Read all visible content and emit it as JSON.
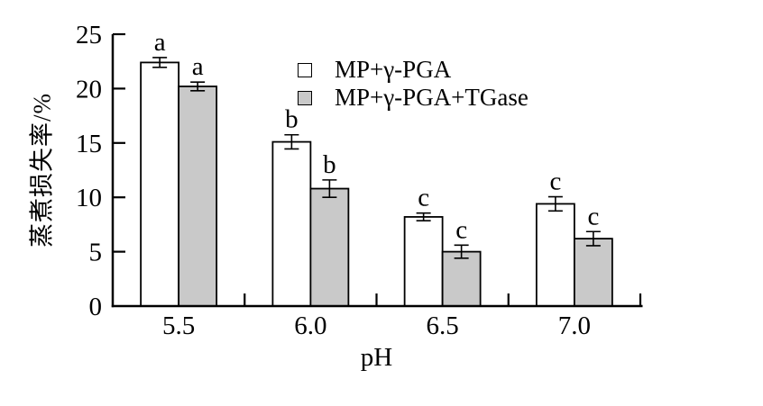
{
  "figure": {
    "background": "#ffffff",
    "text_color": "#000000"
  },
  "chart_data": {
    "type": "bar",
    "xlabel": "pH",
    "ylabel": "蒸煮损失率/%",
    "categories": [
      "5.5",
      "6.0",
      "6.5",
      "7.0"
    ],
    "series": [
      {
        "name": "MP+γ-PGA",
        "fill": "#ffffff",
        "values": [
          22.4,
          15.1,
          8.2,
          9.4
        ],
        "errors": [
          0.45,
          0.65,
          0.35,
          0.65
        ],
        "letters": [
          "a",
          "b",
          "c",
          "c"
        ]
      },
      {
        "name": "MP+γ-PGA+TGase",
        "fill": "#c9c9c9",
        "values": [
          20.2,
          10.8,
          5.0,
          6.2
        ],
        "errors": [
          0.4,
          0.8,
          0.6,
          0.65
        ],
        "letters": [
          "a",
          "b",
          "c",
          "c"
        ]
      }
    ],
    "ylim": [
      0,
      25
    ],
    "yticks": [
      0,
      5,
      10,
      15,
      20,
      25
    ],
    "grid": false,
    "error_bars": true,
    "legend_position": "inside-top-center",
    "bar_edge_color": "#000000"
  }
}
